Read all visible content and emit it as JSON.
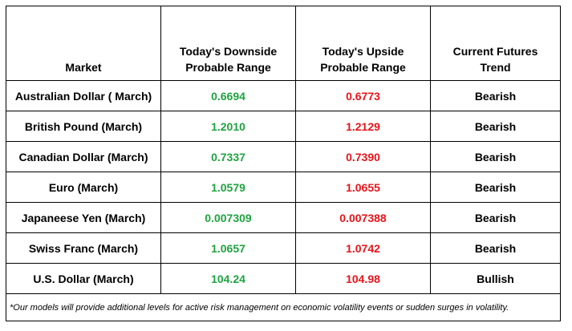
{
  "table": {
    "headers": {
      "market": "Market",
      "downside": [
        "Today's Downside",
        "Probable Range"
      ],
      "upside": [
        "Today's Upside",
        "Probable Range"
      ],
      "trend": [
        "Current Futures",
        "Trend"
      ]
    },
    "rows": [
      {
        "market": "Australian Dollar ( March)",
        "downside": "0.6694",
        "upside": "0.6773",
        "trend": "Bearish"
      },
      {
        "market": "British Pound (March)",
        "downside": "1.2010",
        "upside": "1.2129",
        "trend": "Bearish"
      },
      {
        "market": "Canadian Dollar (March)",
        "downside": "0.7337",
        "upside": "0.7390",
        "trend": "Bearish"
      },
      {
        "market": "Euro (March)",
        "downside": "1.0579",
        "upside": "1.0655",
        "trend": "Bearish"
      },
      {
        "market": "Japaneese Yen (March)",
        "downside": "0.007309",
        "upside": "0.007388",
        "trend": "Bearish"
      },
      {
        "market": "Swiss Franc (March)",
        "downside": "1.0657",
        "upside": "1.0742",
        "trend": "Bearish"
      },
      {
        "market": "U.S. Dollar (March)",
        "downside": "104.24",
        "upside": "104.98",
        "trend": "Bullish"
      }
    ],
    "footnote": "*Our models will provide additional levels for active risk management on economic volatility events or sudden surges in volatility."
  },
  "colors": {
    "downside_text": "#1fa340",
    "upside_text": "#e8131a",
    "border": "#000000"
  }
}
